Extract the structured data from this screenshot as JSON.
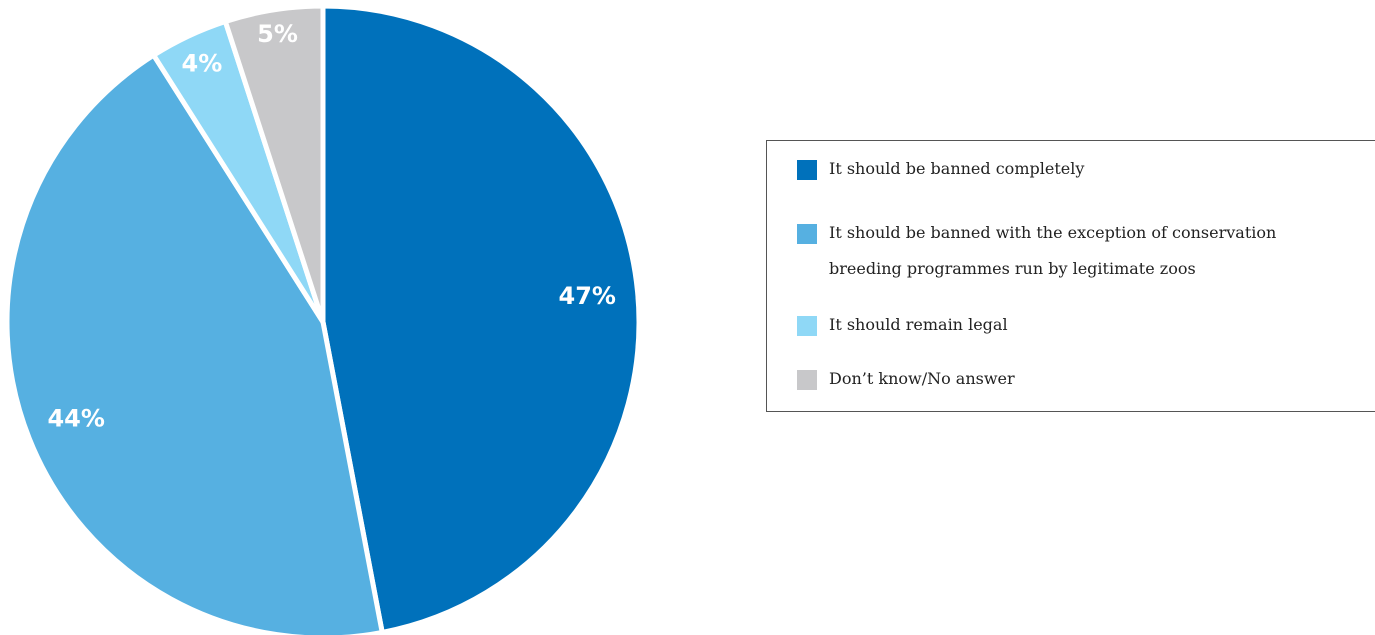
{
  "chart_data": {
    "type": "pie",
    "values": [
      47,
      44,
      4,
      5
    ],
    "labels": [
      "47%",
      "44%",
      "4%",
      "5%"
    ],
    "categories": [
      "It should be banned completely",
      "It should be banned with the exception of conservation breeding programmes run by legitimate zoos",
      "It should remain legal",
      "Don’t know/No answer"
    ],
    "colors": [
      "#0071bb",
      "#56b0e1",
      "#8fd8f6",
      "#c8c8ca"
    ],
    "legend_position": "right"
  },
  "legend": {
    "items": [
      {
        "label": "It should be banned completely",
        "color": "#0071bb"
      },
      {
        "label": "It should be banned with the exception of conservation breeding programmes run by legitimate zoos",
        "color": "#56b0e1"
      },
      {
        "label": "It should remain legal",
        "color": "#8fd8f6"
      },
      {
        "label": "Don’t know/No answer",
        "color": "#c8c8ca"
      }
    ]
  }
}
